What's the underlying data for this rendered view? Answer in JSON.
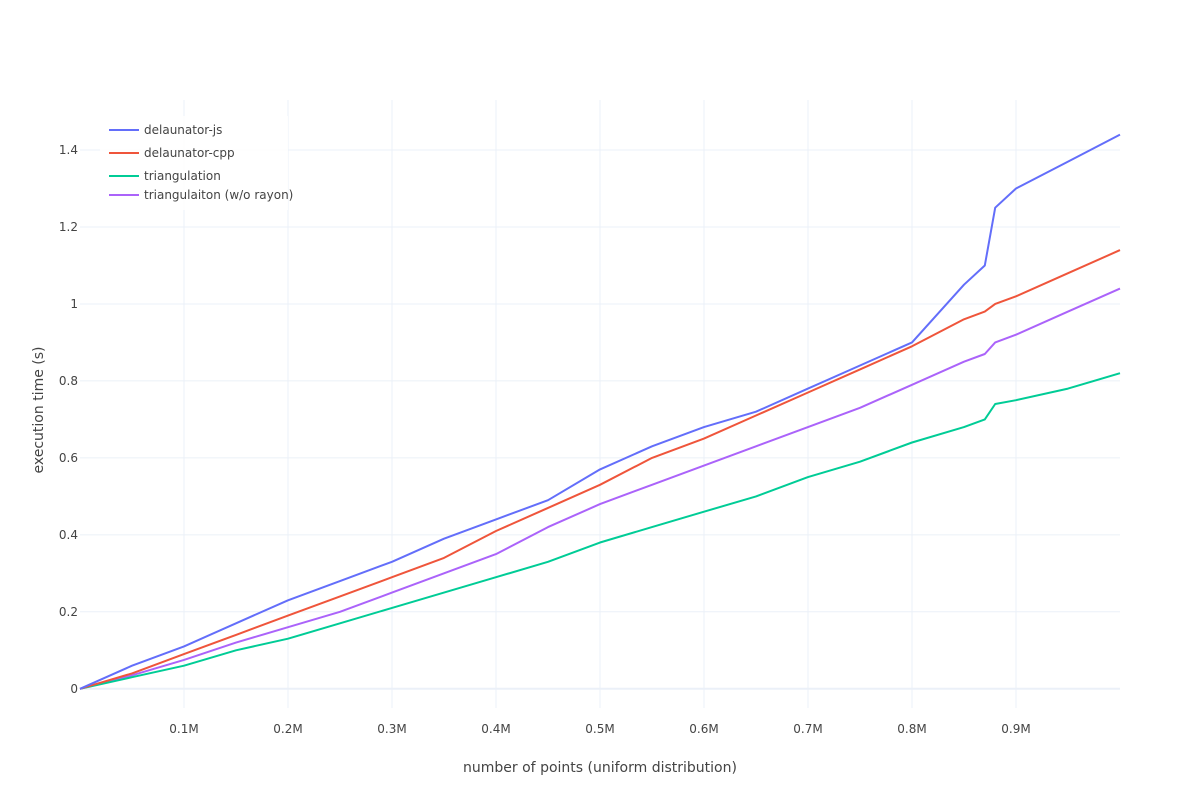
{
  "chart_data": {
    "type": "line",
    "title": "",
    "xlabel": "number of points (uniform distribution)",
    "ylabel": "execution time (s)",
    "xlim": [
      0,
      1000000
    ],
    "ylim": [
      -0.05,
      1.53
    ],
    "grid": true,
    "legend_position": "top-left",
    "x_ticks": [
      {
        "value": 100000,
        "label": "0.1M"
      },
      {
        "value": 200000,
        "label": "0.2M"
      },
      {
        "value": 300000,
        "label": "0.3M"
      },
      {
        "value": 400000,
        "label": "0.4M"
      },
      {
        "value": 500000,
        "label": "0.5M"
      },
      {
        "value": 600000,
        "label": "0.6M"
      },
      {
        "value": 700000,
        "label": "0.7M"
      },
      {
        "value": 800000,
        "label": "0.8M"
      },
      {
        "value": 900000,
        "label": "0.9M"
      }
    ],
    "y_ticks": [
      {
        "value": 0,
        "label": "0"
      },
      {
        "value": 0.2,
        "label": "0.2"
      },
      {
        "value": 0.4,
        "label": "0.4"
      },
      {
        "value": 0.6,
        "label": "0.6"
      },
      {
        "value": 0.8,
        "label": "0.8"
      },
      {
        "value": 1,
        "label": "1"
      },
      {
        "value": 1.2,
        "label": "1.2"
      },
      {
        "value": 1.4,
        "label": "1.4"
      }
    ],
    "x": [
      0,
      50000,
      100000,
      150000,
      200000,
      250000,
      300000,
      350000,
      400000,
      450000,
      500000,
      550000,
      600000,
      650000,
      700000,
      750000,
      800000,
      850000,
      870000,
      880000,
      900000,
      950000,
      1000000
    ],
    "series": [
      {
        "name": "delaunator-js",
        "color": "#636efa",
        "values": [
          0,
          0.06,
          0.11,
          0.17,
          0.23,
          0.28,
          0.33,
          0.39,
          0.44,
          0.49,
          0.57,
          0.63,
          0.68,
          0.72,
          0.78,
          0.84,
          0.9,
          1.05,
          1.1,
          1.25,
          1.3,
          1.37,
          1.44
        ]
      },
      {
        "name": "delaunator-cpp",
        "color": "#ef553b",
        "values": [
          0,
          0.04,
          0.09,
          0.14,
          0.19,
          0.24,
          0.29,
          0.34,
          0.41,
          0.47,
          0.53,
          0.6,
          0.65,
          0.71,
          0.77,
          0.83,
          0.89,
          0.96,
          0.98,
          1.0,
          1.02,
          1.08,
          1.14
        ]
      },
      {
        "name": "triangulation",
        "color": "#00cc96",
        "values": [
          0,
          0.03,
          0.06,
          0.1,
          0.13,
          0.17,
          0.21,
          0.25,
          0.29,
          0.33,
          0.38,
          0.42,
          0.46,
          0.5,
          0.55,
          0.59,
          0.64,
          0.68,
          0.7,
          0.74,
          0.75,
          0.78,
          0.82
        ]
      },
      {
        "name": "triangulaiton (w/o rayon)",
        "color": "#ab63fa",
        "values": [
          0,
          0.035,
          0.075,
          0.12,
          0.16,
          0.2,
          0.25,
          0.3,
          0.35,
          0.42,
          0.48,
          0.53,
          0.58,
          0.63,
          0.68,
          0.73,
          0.79,
          0.85,
          0.87,
          0.9,
          0.92,
          0.98,
          1.04
        ]
      }
    ]
  }
}
